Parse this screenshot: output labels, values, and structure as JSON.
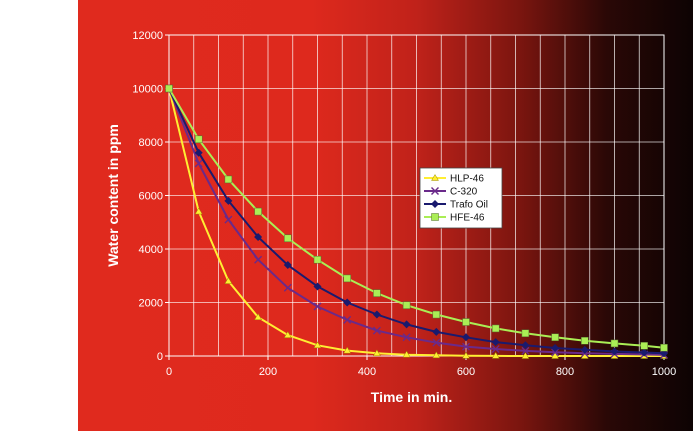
{
  "chart_data": {
    "type": "line",
    "xlabel": "Time in min.",
    "ylabel": "Water content in ppm",
    "xlim": [
      0,
      1000
    ],
    "ylim": [
      0,
      12000
    ],
    "xticks": [
      0,
      200,
      400,
      600,
      800,
      1000
    ],
    "yticks": [
      0,
      2000,
      4000,
      6000,
      8000,
      10000,
      12000
    ],
    "x_tick_labels": [
      "0",
      "200",
      "400",
      "600",
      "800",
      "1000"
    ],
    "y_tick_labels": [
      "0",
      "2000",
      "4000",
      "6000",
      "8000",
      "10000",
      "12000"
    ],
    "grid": true,
    "legend_position": "right",
    "series": [
      {
        "name": "HLP-46",
        "color": "#ffee33",
        "marker": "triangle",
        "x": [
          0,
          60,
          120,
          180,
          240,
          300,
          360,
          420,
          480,
          540,
          600,
          660,
          720,
          780,
          840,
          900,
          960,
          1020
        ],
        "values": [
          10000,
          5400,
          2800,
          1450,
          780,
          400,
          200,
          100,
          50,
          25,
          10,
          5,
          0,
          0,
          0,
          0,
          0,
          0
        ]
      },
      {
        "name": "C-320",
        "color": "#6a2a8a",
        "marker": "x",
        "x": [
          0,
          60,
          120,
          180,
          240,
          300,
          360,
          420,
          480,
          540,
          600,
          660,
          720,
          780,
          840,
          900,
          960,
          1020
        ],
        "values": [
          10000,
          7200,
          5100,
          3600,
          2550,
          1850,
          1350,
          950,
          700,
          500,
          350,
          260,
          190,
          140,
          100,
          80,
          60,
          40
        ]
      },
      {
        "name": "Trafo Oil",
        "color": "#1a1a6e",
        "marker": "diamond",
        "x": [
          0,
          60,
          120,
          180,
          240,
          300,
          360,
          420,
          480,
          540,
          600,
          660,
          720,
          780,
          840,
          900,
          960,
          1020
        ],
        "values": [
          10000,
          7600,
          5800,
          4450,
          3400,
          2600,
          2000,
          1550,
          1180,
          900,
          700,
          520,
          400,
          300,
          230,
          170,
          130,
          100
        ]
      },
      {
        "name": "HFE-46",
        "color": "#aaee55",
        "marker": "square",
        "x": [
          0,
          60,
          120,
          180,
          240,
          300,
          360,
          420,
          480,
          540,
          600,
          660,
          720,
          780,
          840,
          900,
          960,
          1020
        ],
        "values": [
          10000,
          8100,
          6600,
          5400,
          4400,
          3600,
          2900,
          2350,
          1900,
          1550,
          1270,
          1030,
          850,
          700,
          570,
          470,
          380,
          310
        ]
      }
    ]
  },
  "colors": {
    "background_left": "#e02a1e",
    "background_right": "#0d0303",
    "grid": "#ffffff",
    "axis_text": "#ffffff",
    "legend_bg": "#ffffff"
  }
}
